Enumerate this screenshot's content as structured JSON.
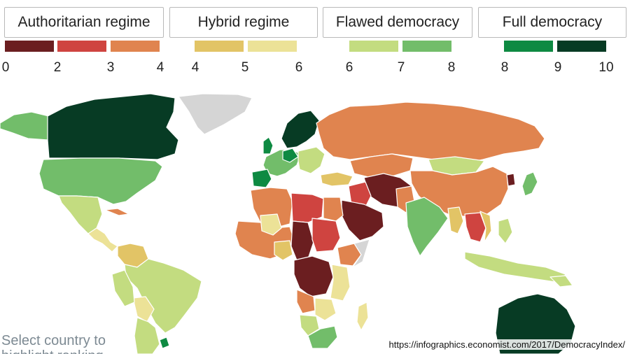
{
  "colors": {
    "auth_0_2": "#6b1e20",
    "auth_2_3": "#cf4440",
    "auth_3_4": "#e0844f",
    "hyb_4_5": "#e2c466",
    "hyb_5_6": "#ece297",
    "flaw_6_7": "#c3dc80",
    "flaw_7_8": "#72bd6a",
    "full_8_9": "#0e8a42",
    "full_9_10": "#073b24",
    "no_data": "#d5d5d5"
  },
  "legend": {
    "groups": [
      {
        "label": "Authoritarian regime",
        "name": "authoritarian-regime-button"
      },
      {
        "label": "Hybrid regime",
        "name": "hybrid-regime-button"
      },
      {
        "label": "Flawed democracy",
        "name": "flawed-democracy-button"
      },
      {
        "label": "Full democracy",
        "name": "full-democracy-button"
      }
    ],
    "ticks": [
      "0",
      "2",
      "3",
      "4",
      "4",
      "5",
      "6",
      "6",
      "7",
      "8",
      "8",
      "9",
      "10"
    ]
  },
  "map": {
    "hint_text": "Select country to",
    "hint_text_2": "highlight ranking",
    "source": "https://infographics.economist.com/2017/DemocracyIndex/"
  }
}
